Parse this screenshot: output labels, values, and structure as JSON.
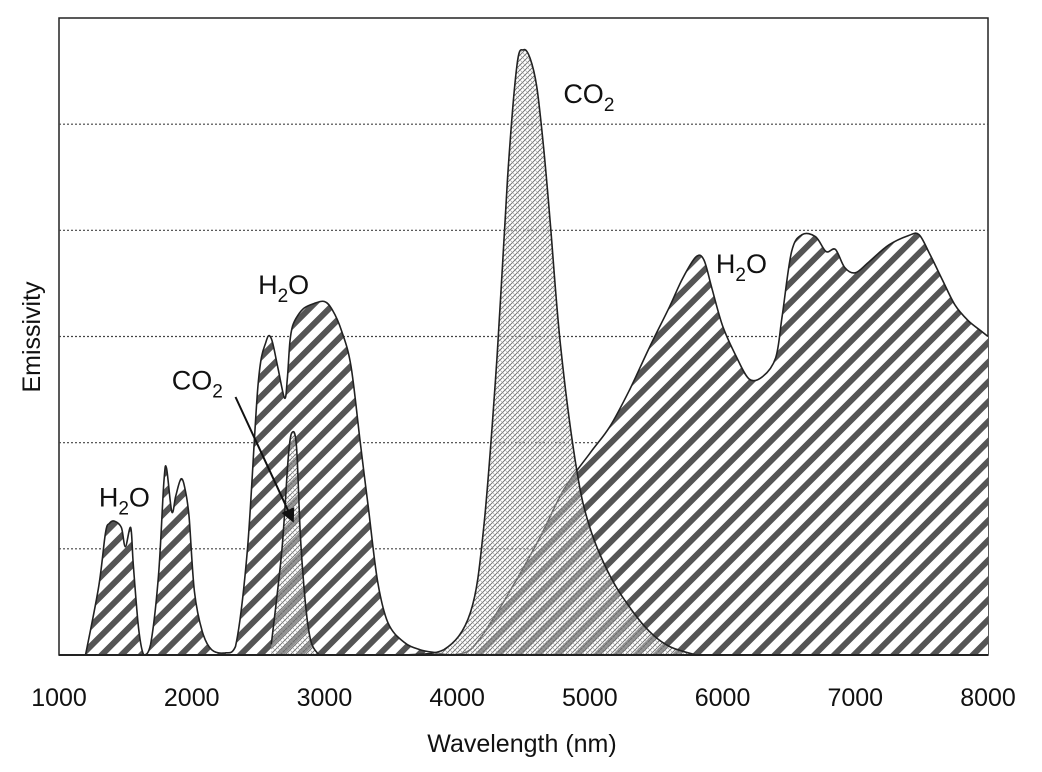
{
  "chart_data": {
    "type": "area",
    "xlabel": "Wavelength (nm)",
    "ylabel": "Emissivity",
    "xlim": [
      1000,
      8000
    ],
    "ylim": [
      0,
      6
    ],
    "x_ticks": [
      "1000",
      "2000",
      "3000",
      "4000",
      "5000",
      "6000",
      "7000",
      "8000"
    ],
    "y_ticks_shown": false,
    "grid": "horizontal-dotted",
    "gridlines_y": [
      1,
      2,
      3,
      4,
      5
    ],
    "series": [
      {
        "molecule": "H2O",
        "pattern": "wide-diagonal-hatch",
        "x": [
          1200,
          1300,
          1350,
          1380,
          1420,
          1470,
          1500,
          1540,
          1560,
          1600,
          1640,
          1690,
          1750,
          1790,
          1810,
          1850,
          1880,
          1920,
          1950,
          1980,
          2020,
          2080,
          2150,
          2250,
          2330,
          2420,
          2500,
          2560,
          2600,
          2650,
          2700,
          2720,
          2740,
          2760,
          2800,
          2850,
          2920,
          3000,
          3060,
          3130,
          3200,
          3270,
          3330,
          3400,
          3480,
          3600,
          3720,
          3850,
          3950,
          4100,
          4300,
          4600,
          4800,
          5000,
          5150,
          5300,
          5450,
          5600,
          5700,
          5800,
          5860,
          5920,
          6000,
          6100,
          6200,
          6300,
          6400,
          6450,
          6520,
          6600,
          6700,
          6780,
          6850,
          6920,
          7000,
          7100,
          7250,
          7400,
          7480,
          7560,
          7650,
          7750,
          7850,
          7950,
          8000
        ],
        "y": [
          0,
          0.65,
          1.15,
          1.24,
          1.26,
          1.2,
          1.02,
          1.2,
          0.85,
          0.25,
          0,
          0.1,
          0.75,
          1.62,
          1.76,
          1.35,
          1.5,
          1.66,
          1.56,
          1.3,
          0.6,
          0.22,
          0.05,
          0.02,
          0.08,
          1.0,
          2.55,
          2.95,
          2.98,
          2.7,
          2.42,
          2.6,
          2.95,
          3.1,
          3.2,
          3.27,
          3.31,
          3.33,
          3.25,
          3.05,
          2.72,
          2.0,
          1.4,
          0.7,
          0.3,
          0.12,
          0.05,
          0.02,
          0,
          0.05,
          0.4,
          1.05,
          1.55,
          1.9,
          2.15,
          2.5,
          2.9,
          3.28,
          3.55,
          3.75,
          3.72,
          3.45,
          3.1,
          2.82,
          2.6,
          2.62,
          2.8,
          3.2,
          3.8,
          3.96,
          3.94,
          3.8,
          3.82,
          3.65,
          3.6,
          3.7,
          3.86,
          3.95,
          3.96,
          3.78,
          3.55,
          3.3,
          3.15,
          3.05,
          3.0
        ]
      },
      {
        "molecule": "CO2",
        "pattern": "fine-crosshatch",
        "x": [
          2600,
          2680,
          2730,
          2760,
          2790,
          2820,
          2860,
          2900,
          2960
        ],
        "y": [
          0.1,
          1.0,
          1.9,
          2.1,
          1.95,
          1.1,
          0.45,
          0.12,
          0
        ]
      },
      {
        "molecule": "CO2",
        "pattern": "fine-crosshatch",
        "x": [
          3200,
          3600,
          3900,
          4100,
          4200,
          4300,
          4380,
          4450,
          4500,
          4550,
          4600,
          4650,
          4700,
          4780,
          4900,
          5000,
          5150,
          5300,
          5450,
          5600,
          5800
        ],
        "y": [
          0,
          0,
          0.05,
          0.4,
          1.2,
          2.8,
          4.5,
          5.55,
          5.7,
          5.62,
          5.35,
          4.8,
          4.1,
          2.9,
          1.75,
          1.2,
          0.75,
          0.45,
          0.22,
          0.08,
          0
        ]
      }
    ],
    "annotations": [
      {
        "text": "H",
        "sub": "2",
        "tail": "O",
        "x": 1300,
        "y": 1.4
      },
      {
        "text": "CO",
        "sub": "2",
        "tail": "",
        "x": 1850,
        "y": 2.5
      },
      {
        "text": "H",
        "sub": "2",
        "tail": "O",
        "x": 2500,
        "y": 3.4
      },
      {
        "text": "CO",
        "sub": "2",
        "tail": "",
        "x": 4800,
        "y": 5.2
      },
      {
        "text": "H",
        "sub": "2",
        "tail": "O",
        "x": 5950,
        "y": 3.6
      }
    ],
    "arrow": {
      "from_x": 2330,
      "from_y": 2.43,
      "to_x": 2760,
      "to_y": 1.27
    }
  }
}
